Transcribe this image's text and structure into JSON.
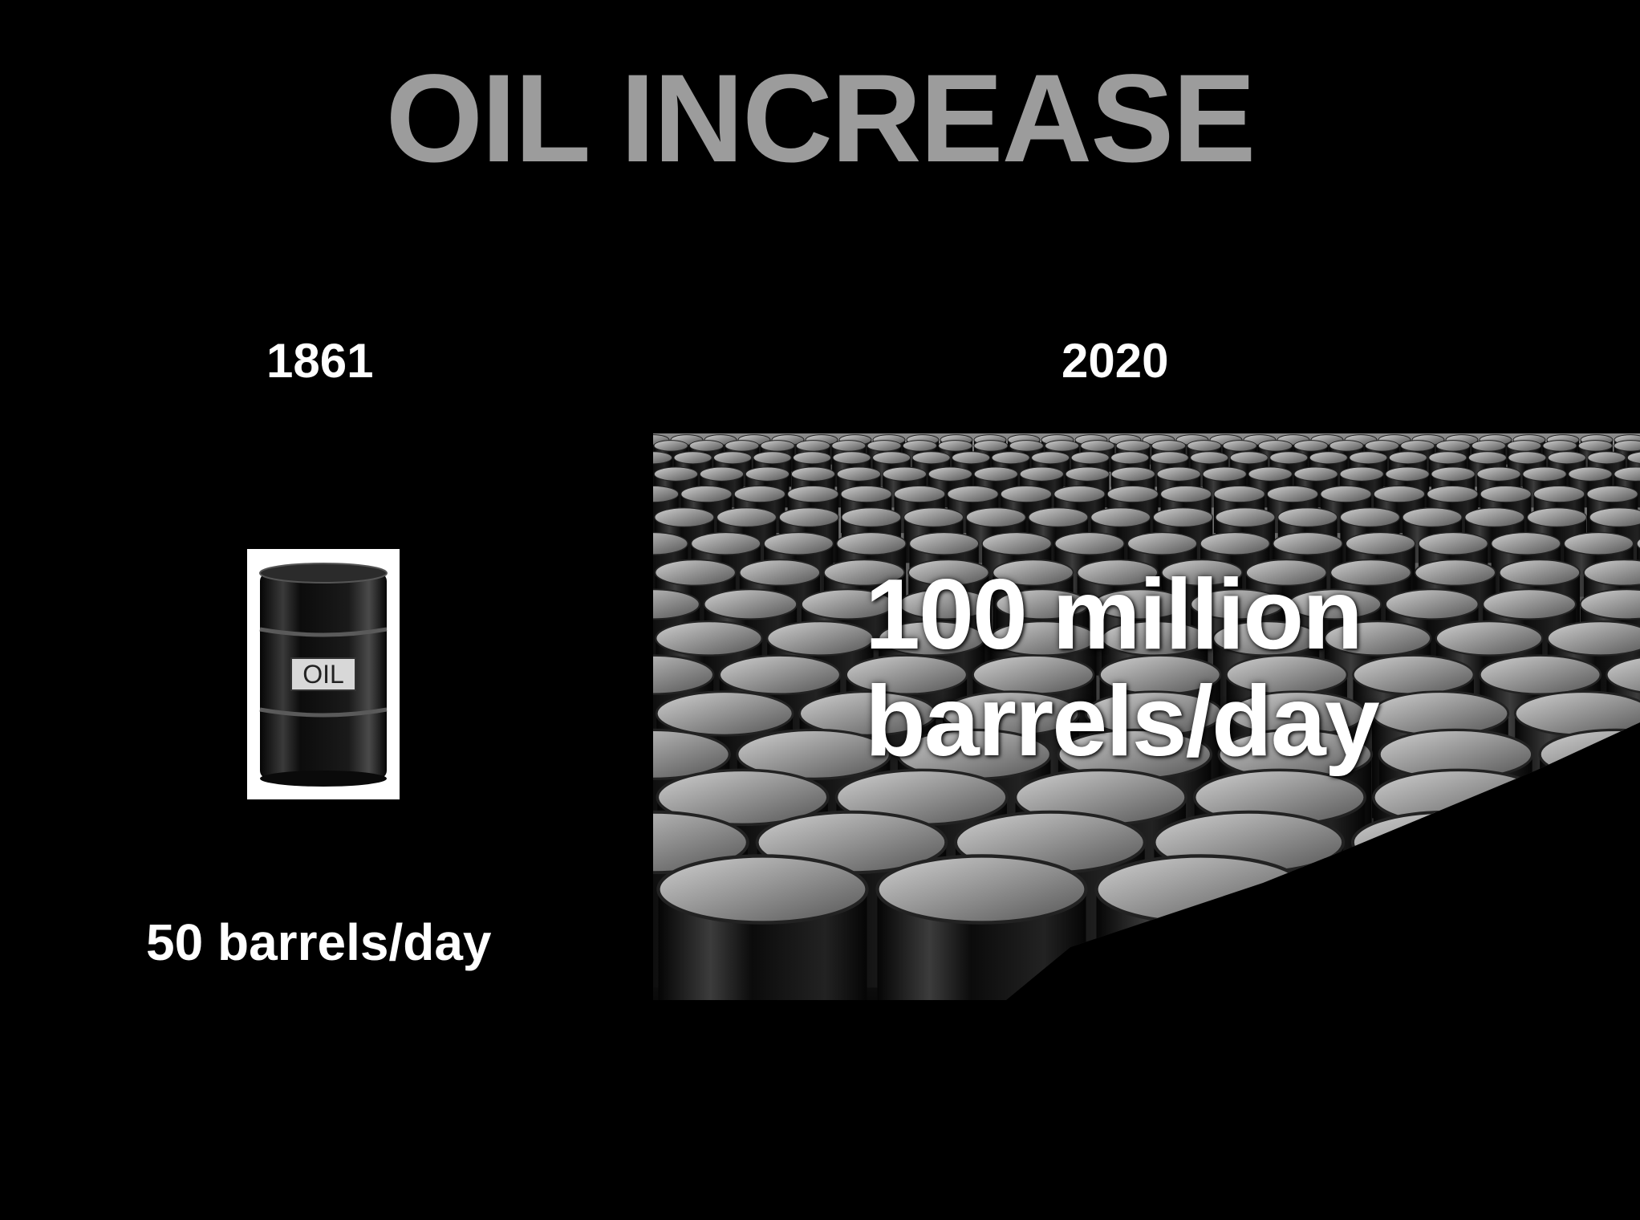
{
  "slide": {
    "title": "OIL INCREASE",
    "left": {
      "year": "1861",
      "barrel_label": "OIL",
      "rate": "50 barrels/day"
    },
    "right": {
      "year": "2020",
      "rate_line1": "100 million",
      "rate_line2": "barrels/day"
    }
  },
  "colors": {
    "background": "#000000",
    "title": "#9c9c9c",
    "text": "#ffffff",
    "barrel": "#111111"
  }
}
